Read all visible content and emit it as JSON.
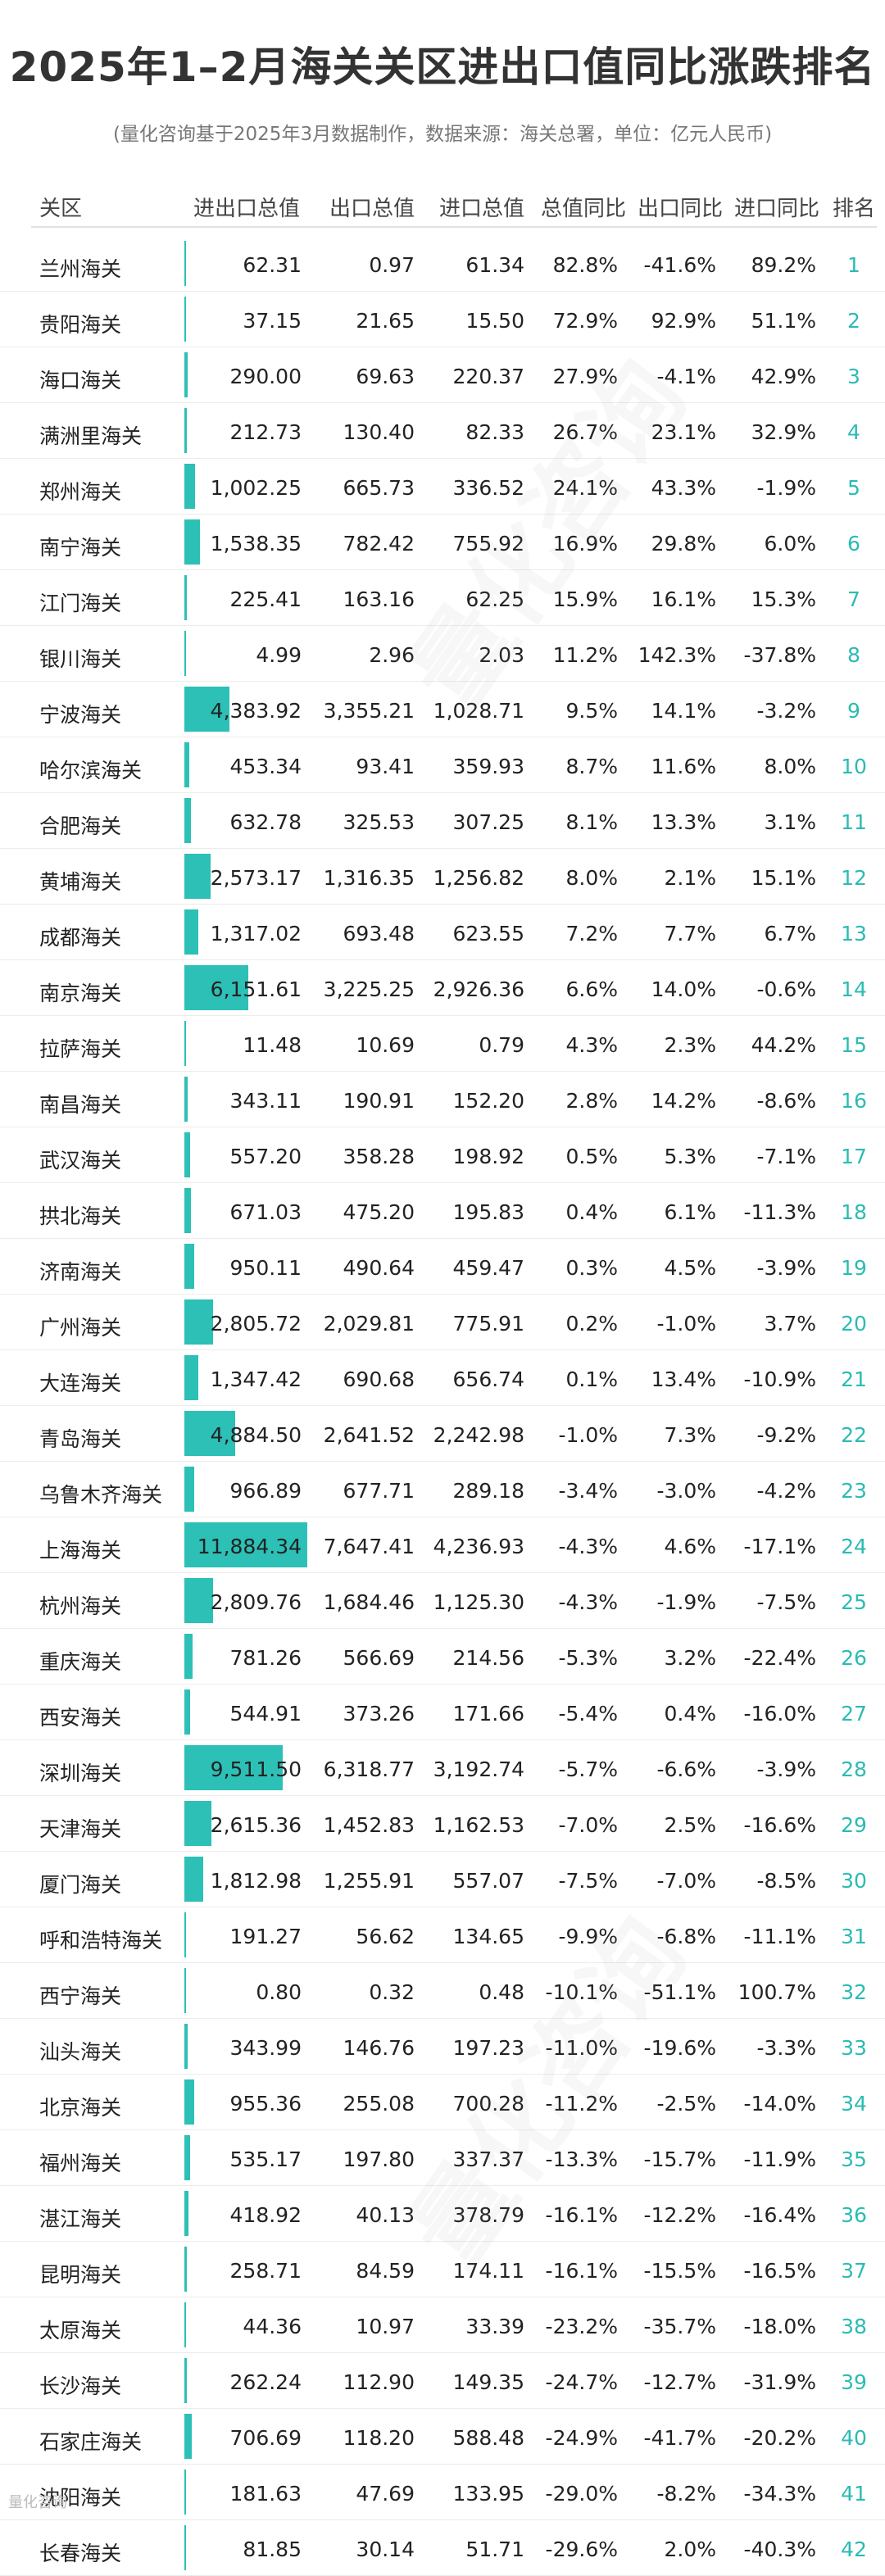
{
  "title": "2025年1–2月海关关区进出口值同比涨跌排名",
  "subtitle": "(量化咨询基于2025年3月数据制作，数据来源：海关总署，单位：亿元人民币)",
  "columns": [
    "关区",
    "进出口总值",
    "出口总值",
    "进口总值",
    "总值同比",
    "出口同比",
    "进口同比",
    "排名"
  ],
  "watermark": "量化咨询",
  "footer_logo": "量化咨询",
  "colors": {
    "bar": "#2cc0b6",
    "rank": "#2bbbb3"
  },
  "chart_data": {
    "type": "table",
    "bar_column": "进出口总值",
    "bar_max": 11884.34,
    "rows": [
      {
        "name": "兰州海关",
        "total": "62.31",
        "export": "0.97",
        "import": "61.34",
        "total_yoy": "82.8%",
        "export_yoy": "-41.6%",
        "import_yoy": "89.2%",
        "rank": "1",
        "total_value": 62.31
      },
      {
        "name": "贵阳海关",
        "total": "37.15",
        "export": "21.65",
        "import": "15.50",
        "total_yoy": "72.9%",
        "export_yoy": "92.9%",
        "import_yoy": "51.1%",
        "rank": "2",
        "total_value": 37.15
      },
      {
        "name": "海口海关",
        "total": "290.00",
        "export": "69.63",
        "import": "220.37",
        "total_yoy": "27.9%",
        "export_yoy": "-4.1%",
        "import_yoy": "42.9%",
        "rank": "3",
        "total_value": 290.0
      },
      {
        "name": "满洲里海关",
        "total": "212.73",
        "export": "130.40",
        "import": "82.33",
        "total_yoy": "26.7%",
        "export_yoy": "23.1%",
        "import_yoy": "32.9%",
        "rank": "4",
        "total_value": 212.73
      },
      {
        "name": "郑州海关",
        "total": "1,002.25",
        "export": "665.73",
        "import": "336.52",
        "total_yoy": "24.1%",
        "export_yoy": "43.3%",
        "import_yoy": "-1.9%",
        "rank": "5",
        "total_value": 1002.25
      },
      {
        "name": "南宁海关",
        "total": "1,538.35",
        "export": "782.42",
        "import": "755.92",
        "total_yoy": "16.9%",
        "export_yoy": "29.8%",
        "import_yoy": "6.0%",
        "rank": "6",
        "total_value": 1538.35
      },
      {
        "name": "江门海关",
        "total": "225.41",
        "export": "163.16",
        "import": "62.25",
        "total_yoy": "15.9%",
        "export_yoy": "16.1%",
        "import_yoy": "15.3%",
        "rank": "7",
        "total_value": 225.41
      },
      {
        "name": "银川海关",
        "total": "4.99",
        "export": "2.96",
        "import": "2.03",
        "total_yoy": "11.2%",
        "export_yoy": "142.3%",
        "import_yoy": "-37.8%",
        "rank": "8",
        "total_value": 4.99
      },
      {
        "name": "宁波海关",
        "total": "4,383.92",
        "export": "3,355.21",
        "import": "1,028.71",
        "total_yoy": "9.5%",
        "export_yoy": "14.1%",
        "import_yoy": "-3.2%",
        "rank": "9",
        "total_value": 4383.92
      },
      {
        "name": "哈尔滨海关",
        "total": "453.34",
        "export": "93.41",
        "import": "359.93",
        "total_yoy": "8.7%",
        "export_yoy": "11.6%",
        "import_yoy": "8.0%",
        "rank": "10",
        "total_value": 453.34
      },
      {
        "name": "合肥海关",
        "total": "632.78",
        "export": "325.53",
        "import": "307.25",
        "total_yoy": "8.1%",
        "export_yoy": "13.3%",
        "import_yoy": "3.1%",
        "rank": "11",
        "total_value": 632.78
      },
      {
        "name": "黄埔海关",
        "total": "2,573.17",
        "export": "1,316.35",
        "import": "1,256.82",
        "total_yoy": "8.0%",
        "export_yoy": "2.1%",
        "import_yoy": "15.1%",
        "rank": "12",
        "total_value": 2573.17
      },
      {
        "name": "成都海关",
        "total": "1,317.02",
        "export": "693.48",
        "import": "623.55",
        "total_yoy": "7.2%",
        "export_yoy": "7.7%",
        "import_yoy": "6.7%",
        "rank": "13",
        "total_value": 1317.02
      },
      {
        "name": "南京海关",
        "total": "6,151.61",
        "export": "3,225.25",
        "import": "2,926.36",
        "total_yoy": "6.6%",
        "export_yoy": "14.0%",
        "import_yoy": "-0.6%",
        "rank": "14",
        "total_value": 6151.61
      },
      {
        "name": "拉萨海关",
        "total": "11.48",
        "export": "10.69",
        "import": "0.79",
        "total_yoy": "4.3%",
        "export_yoy": "2.3%",
        "import_yoy": "44.2%",
        "rank": "15",
        "total_value": 11.48
      },
      {
        "name": "南昌海关",
        "total": "343.11",
        "export": "190.91",
        "import": "152.20",
        "total_yoy": "2.8%",
        "export_yoy": "14.2%",
        "import_yoy": "-8.6%",
        "rank": "16",
        "total_value": 343.11
      },
      {
        "name": "武汉海关",
        "total": "557.20",
        "export": "358.28",
        "import": "198.92",
        "total_yoy": "0.5%",
        "export_yoy": "5.3%",
        "import_yoy": "-7.1%",
        "rank": "17",
        "total_value": 557.2
      },
      {
        "name": "拱北海关",
        "total": "671.03",
        "export": "475.20",
        "import": "195.83",
        "total_yoy": "0.4%",
        "export_yoy": "6.1%",
        "import_yoy": "-11.3%",
        "rank": "18",
        "total_value": 671.03
      },
      {
        "name": "济南海关",
        "total": "950.11",
        "export": "490.64",
        "import": "459.47",
        "total_yoy": "0.3%",
        "export_yoy": "4.5%",
        "import_yoy": "-3.9%",
        "rank": "19",
        "total_value": 950.11
      },
      {
        "name": "广州海关",
        "total": "2,805.72",
        "export": "2,029.81",
        "import": "775.91",
        "total_yoy": "0.2%",
        "export_yoy": "-1.0%",
        "import_yoy": "3.7%",
        "rank": "20",
        "total_value": 2805.72
      },
      {
        "name": "大连海关",
        "total": "1,347.42",
        "export": "690.68",
        "import": "656.74",
        "total_yoy": "0.1%",
        "export_yoy": "13.4%",
        "import_yoy": "-10.9%",
        "rank": "21",
        "total_value": 1347.42
      },
      {
        "name": "青岛海关",
        "total": "4,884.50",
        "export": "2,641.52",
        "import": "2,242.98",
        "total_yoy": "-1.0%",
        "export_yoy": "7.3%",
        "import_yoy": "-9.2%",
        "rank": "22",
        "total_value": 4884.5
      },
      {
        "name": "乌鲁木齐海关",
        "total": "966.89",
        "export": "677.71",
        "import": "289.18",
        "total_yoy": "-3.4%",
        "export_yoy": "-3.0%",
        "import_yoy": "-4.2%",
        "rank": "23",
        "total_value": 966.89
      },
      {
        "name": "上海海关",
        "total": "11,884.34",
        "export": "7,647.41",
        "import": "4,236.93",
        "total_yoy": "-4.3%",
        "export_yoy": "4.6%",
        "import_yoy": "-17.1%",
        "rank": "24",
        "total_value": 11884.34
      },
      {
        "name": "杭州海关",
        "total": "2,809.76",
        "export": "1,684.46",
        "import": "1,125.30",
        "total_yoy": "-4.3%",
        "export_yoy": "-1.9%",
        "import_yoy": "-7.5%",
        "rank": "25",
        "total_value": 2809.76
      },
      {
        "name": "重庆海关",
        "total": "781.26",
        "export": "566.69",
        "import": "214.56",
        "total_yoy": "-5.3%",
        "export_yoy": "3.2%",
        "import_yoy": "-22.4%",
        "rank": "26",
        "total_value": 781.26
      },
      {
        "name": "西安海关",
        "total": "544.91",
        "export": "373.26",
        "import": "171.66",
        "total_yoy": "-5.4%",
        "export_yoy": "0.4%",
        "import_yoy": "-16.0%",
        "rank": "27",
        "total_value": 544.91
      },
      {
        "name": "深圳海关",
        "total": "9,511.50",
        "export": "6,318.77",
        "import": "3,192.74",
        "total_yoy": "-5.7%",
        "export_yoy": "-6.6%",
        "import_yoy": "-3.9%",
        "rank": "28",
        "total_value": 9511.5
      },
      {
        "name": "天津海关",
        "total": "2,615.36",
        "export": "1,452.83",
        "import": "1,162.53",
        "total_yoy": "-7.0%",
        "export_yoy": "2.5%",
        "import_yoy": "-16.6%",
        "rank": "29",
        "total_value": 2615.36
      },
      {
        "name": "厦门海关",
        "total": "1,812.98",
        "export": "1,255.91",
        "import": "557.07",
        "total_yoy": "-7.5%",
        "export_yoy": "-7.0%",
        "import_yoy": "-8.5%",
        "rank": "30",
        "total_value": 1812.98
      },
      {
        "name": "呼和浩特海关",
        "total": "191.27",
        "export": "56.62",
        "import": "134.65",
        "total_yoy": "-9.9%",
        "export_yoy": "-6.8%",
        "import_yoy": "-11.1%",
        "rank": "31",
        "total_value": 191.27
      },
      {
        "name": "西宁海关",
        "total": "0.80",
        "export": "0.32",
        "import": "0.48",
        "total_yoy": "-10.1%",
        "export_yoy": "-51.1%",
        "import_yoy": "100.7%",
        "rank": "32",
        "total_value": 0.8
      },
      {
        "name": "汕头海关",
        "total": "343.99",
        "export": "146.76",
        "import": "197.23",
        "total_yoy": "-11.0%",
        "export_yoy": "-19.6%",
        "import_yoy": "-3.3%",
        "rank": "33",
        "total_value": 343.99
      },
      {
        "name": "北京海关",
        "total": "955.36",
        "export": "255.08",
        "import": "700.28",
        "total_yoy": "-11.2%",
        "export_yoy": "-2.5%",
        "import_yoy": "-14.0%",
        "rank": "34",
        "total_value": 955.36
      },
      {
        "name": "福州海关",
        "total": "535.17",
        "export": "197.80",
        "import": "337.37",
        "total_yoy": "-13.3%",
        "export_yoy": "-15.7%",
        "import_yoy": "-11.9%",
        "rank": "35",
        "total_value": 535.17
      },
      {
        "name": "湛江海关",
        "total": "418.92",
        "export": "40.13",
        "import": "378.79",
        "total_yoy": "-16.1%",
        "export_yoy": "-12.2%",
        "import_yoy": "-16.4%",
        "rank": "36",
        "total_value": 418.92
      },
      {
        "name": "昆明海关",
        "total": "258.71",
        "export": "84.59",
        "import": "174.11",
        "total_yoy": "-16.1%",
        "export_yoy": "-15.5%",
        "import_yoy": "-16.5%",
        "rank": "37",
        "total_value": 258.71
      },
      {
        "name": "太原海关",
        "total": "44.36",
        "export": "10.97",
        "import": "33.39",
        "total_yoy": "-23.2%",
        "export_yoy": "-35.7%",
        "import_yoy": "-18.0%",
        "rank": "38",
        "total_value": 44.36
      },
      {
        "name": "长沙海关",
        "total": "262.24",
        "export": "112.90",
        "import": "149.35",
        "total_yoy": "-24.7%",
        "export_yoy": "-12.7%",
        "import_yoy": "-31.9%",
        "rank": "39",
        "total_value": 262.24
      },
      {
        "name": "石家庄海关",
        "total": "706.69",
        "export": "118.20",
        "import": "588.48",
        "total_yoy": "-24.9%",
        "export_yoy": "-41.7%",
        "import_yoy": "-20.2%",
        "rank": "40",
        "total_value": 706.69
      },
      {
        "name": "沈阳海关",
        "total": "181.63",
        "export": "47.69",
        "import": "133.95",
        "total_yoy": "-29.0%",
        "export_yoy": "-8.2%",
        "import_yoy": "-34.3%",
        "rank": "41",
        "total_value": 181.63
      },
      {
        "name": "长春海关",
        "total": "81.85",
        "export": "30.14",
        "import": "51.71",
        "total_yoy": "-29.6%",
        "export_yoy": "2.0%",
        "import_yoy": "-40.3%",
        "rank": "42",
        "total_value": 81.85
      }
    ]
  }
}
